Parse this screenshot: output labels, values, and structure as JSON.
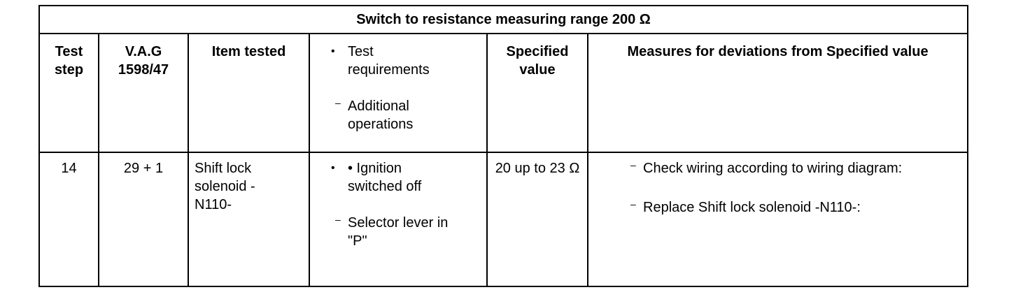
{
  "header": {
    "title": "Switch to resistance measuring range 200 Ω"
  },
  "table": {
    "columns": [
      "Test step",
      "V.A.G 1598/47",
      "Item tested",
      {
        "bullets": [
          "Test requirements"
        ],
        "dashes": [
          "Additional operations"
        ]
      },
      "Specified value",
      "Measures for deviations from Specified value"
    ],
    "rows": [
      [
        "14",
        "29 + 1",
        "Shift lock solenoid -N110-",
        {
          "bullets": [
            "• Ignition switched off"
          ],
          "dashes": [
            "Selector lever in \"P\""
          ]
        },
        "20 up to 23 Ω",
        {
          "dashes": [
            "Check wiring according to wiring diagram:",
            "Replace Shift lock solenoid -N110-:"
          ]
        }
      ]
    ]
  }
}
